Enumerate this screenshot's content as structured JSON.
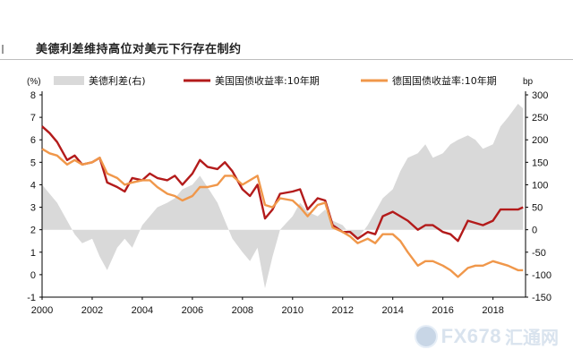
{
  "title": "美德利差维持高位对美元下行存在制约",
  "watermark": {
    "brand": "FX678",
    "cn": "汇通网"
  },
  "chart_data": {
    "type": "line+area",
    "left_unit": "(%)",
    "right_unit": "bp",
    "left_ylim": [
      -1,
      8
    ],
    "right_ylim": [
      -150,
      300
    ],
    "left_ticks": [
      -1,
      0,
      1,
      2,
      3,
      4,
      5,
      6,
      7,
      8
    ],
    "right_ticks": [
      -150,
      -100,
      -50,
      0,
      50,
      100,
      150,
      200,
      250,
      300
    ],
    "xlim": [
      2000,
      2019.3
    ],
    "x_ticks": [
      2000,
      2002,
      2004,
      2006,
      2008,
      2010,
      2012,
      2014,
      2016,
      2018
    ],
    "legend": [
      "美德利差(右)",
      "美国国债收益率:10年期",
      "德国国债收益率:10年期"
    ],
    "colors": {
      "spread": "#d9d9d9",
      "us": "#b31b1b",
      "de": "#f0974a"
    },
    "series": [
      {
        "name": "美德利差(右)",
        "axis": "right",
        "style": "area",
        "x": [
          2000.0,
          2000.3,
          2000.6,
          2001.0,
          2001.3,
          2001.6,
          2002.0,
          2002.3,
          2002.6,
          2003.0,
          2003.3,
          2003.6,
          2004.0,
          2004.3,
          2004.6,
          2005.0,
          2005.3,
          2005.6,
          2006.0,
          2006.3,
          2006.6,
          2007.0,
          2007.3,
          2007.6,
          2008.0,
          2008.3,
          2008.6,
          2008.9,
          2009.2,
          2009.5,
          2010.0,
          2010.3,
          2010.6,
          2011.0,
          2011.3,
          2011.6,
          2012.0,
          2012.3,
          2012.6,
          2013.0,
          2013.3,
          2013.6,
          2014.0,
          2014.3,
          2014.6,
          2015.0,
          2015.3,
          2015.6,
          2016.0,
          2016.3,
          2016.6,
          2017.0,
          2017.3,
          2017.6,
          2018.0,
          2018.3,
          2018.6,
          2019.0,
          2019.2
        ],
        "values": [
          100,
          80,
          60,
          20,
          -10,
          -30,
          -20,
          -60,
          -90,
          -40,
          -20,
          -40,
          10,
          30,
          50,
          60,
          70,
          90,
          100,
          120,
          95,
          60,
          20,
          -20,
          -50,
          -70,
          -40,
          -130,
          -60,
          0,
          30,
          60,
          40,
          30,
          45,
          20,
          10,
          -10,
          -20,
          10,
          40,
          70,
          90,
          130,
          160,
          170,
          190,
          160,
          170,
          190,
          200,
          210,
          200,
          180,
          190,
          230,
          250,
          280,
          270
        ]
      },
      {
        "name": "美国国债收益率:10年期",
        "axis": "left",
        "style": "line",
        "x": [
          2000.0,
          2000.3,
          2000.6,
          2001.0,
          2001.3,
          2001.6,
          2002.0,
          2002.3,
          2002.6,
          2003.0,
          2003.3,
          2003.6,
          2004.0,
          2004.3,
          2004.6,
          2005.0,
          2005.3,
          2005.6,
          2006.0,
          2006.3,
          2006.6,
          2007.0,
          2007.3,
          2007.6,
          2008.0,
          2008.3,
          2008.6,
          2008.9,
          2009.2,
          2009.5,
          2010.0,
          2010.3,
          2010.6,
          2011.0,
          2011.3,
          2011.6,
          2012.0,
          2012.3,
          2012.6,
          2013.0,
          2013.3,
          2013.6,
          2014.0,
          2014.3,
          2014.6,
          2015.0,
          2015.3,
          2015.6,
          2016.0,
          2016.3,
          2016.6,
          2017.0,
          2017.3,
          2017.6,
          2018.0,
          2018.3,
          2018.6,
          2019.0,
          2019.2
        ],
        "values": [
          6.6,
          6.3,
          5.9,
          5.1,
          5.3,
          4.9,
          5.0,
          5.2,
          4.1,
          3.9,
          3.7,
          4.3,
          4.2,
          4.5,
          4.3,
          4.2,
          4.4,
          4.0,
          4.5,
          5.1,
          4.8,
          4.7,
          5.0,
          4.6,
          3.8,
          3.5,
          4.0,
          2.5,
          2.9,
          3.6,
          3.7,
          3.8,
          2.9,
          3.4,
          3.3,
          2.2,
          1.9,
          1.9,
          1.6,
          1.9,
          1.8,
          2.6,
          2.8,
          2.6,
          2.4,
          2.0,
          2.2,
          2.2,
          1.9,
          1.8,
          1.5,
          2.4,
          2.3,
          2.2,
          2.4,
          2.9,
          2.9,
          2.9,
          3.0
        ]
      },
      {
        "name": "德国国债收益率:10年期",
        "axis": "left",
        "style": "line",
        "x": [
          2000.0,
          2000.3,
          2000.6,
          2001.0,
          2001.3,
          2001.6,
          2002.0,
          2002.3,
          2002.6,
          2003.0,
          2003.3,
          2003.6,
          2004.0,
          2004.3,
          2004.6,
          2005.0,
          2005.3,
          2005.6,
          2006.0,
          2006.3,
          2006.6,
          2007.0,
          2007.3,
          2007.6,
          2008.0,
          2008.3,
          2008.6,
          2008.9,
          2009.2,
          2009.5,
          2010.0,
          2010.3,
          2010.6,
          2011.0,
          2011.3,
          2011.6,
          2012.0,
          2012.3,
          2012.6,
          2013.0,
          2013.3,
          2013.6,
          2014.0,
          2014.3,
          2014.6,
          2015.0,
          2015.3,
          2015.6,
          2016.0,
          2016.3,
          2016.6,
          2017.0,
          2017.3,
          2017.6,
          2018.0,
          2018.3,
          2018.6,
          2019.0,
          2019.2
        ],
        "values": [
          5.6,
          5.4,
          5.3,
          4.9,
          5.1,
          4.9,
          5.0,
          5.2,
          4.5,
          4.3,
          4.0,
          4.1,
          4.2,
          4.2,
          3.9,
          3.6,
          3.5,
          3.3,
          3.5,
          3.9,
          3.9,
          4.0,
          4.4,
          4.4,
          4.0,
          4.2,
          4.4,
          3.1,
          3.0,
          3.4,
          3.3,
          3.0,
          2.6,
          3.1,
          3.2,
          2.1,
          1.9,
          1.7,
          1.4,
          1.6,
          1.4,
          1.8,
          1.8,
          1.5,
          1.0,
          0.4,
          0.6,
          0.6,
          0.4,
          0.2,
          -0.1,
          0.3,
          0.4,
          0.4,
          0.6,
          0.5,
          0.4,
          0.2,
          0.2
        ]
      }
    ]
  }
}
